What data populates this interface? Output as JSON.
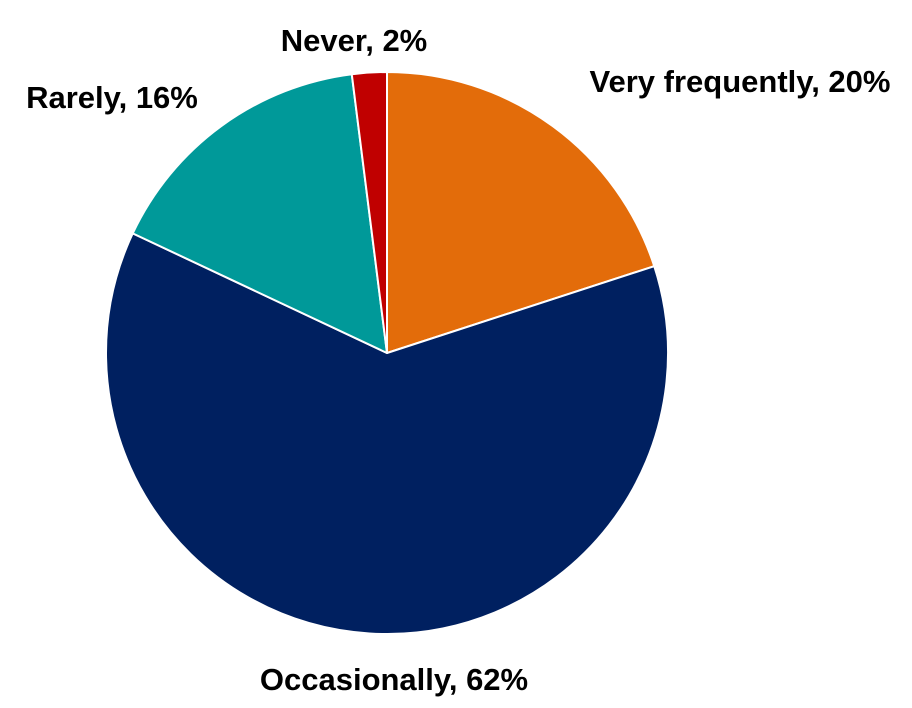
{
  "chart_data": {
    "type": "pie",
    "start_angle_deg": 0,
    "direction": "clockwise",
    "slices": [
      {
        "category": "Very frequently",
        "value": 20,
        "label": "Very frequently, 20%",
        "color": "#E36C0A"
      },
      {
        "category": "Occasionally",
        "value": 62,
        "label": "Occasionally, 62%",
        "color": "#002060"
      },
      {
        "category": "Rarely",
        "value": 16,
        "label": "Rarely, 16%",
        "color": "#009999"
      },
      {
        "category": "Never",
        "value": 2,
        "label": "Never, 2%",
        "color": "#C00000"
      }
    ],
    "slice_border_color": "#FFFFFF",
    "legend": "none"
  }
}
